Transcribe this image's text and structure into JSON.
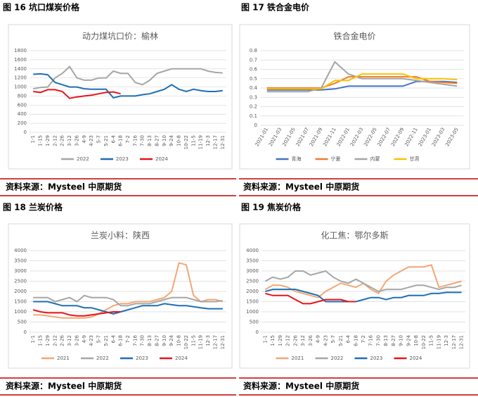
{
  "figures": [
    {
      "caption": "图 16 坑口煤炭价格",
      "source": "资料来源：Mysteel 中原期货"
    },
    {
      "caption": "图 17 铁合金电价",
      "source": "资料来源：Mysteel 中原期货"
    },
    {
      "caption": "图 18 兰炭价格",
      "source": "资料来源：Mysteel 中原期货"
    },
    {
      "caption": "图 19 焦炭价格",
      "source": "资料来源：Mysteel 中原期货"
    }
  ],
  "chart_data": [
    {
      "type": "line",
      "title": "动力煤坑口价：榆林",
      "categories": [
        "1-1",
        "1-15",
        "1-29",
        "2-12",
        "2-26",
        "3-12",
        "3-26",
        "4-9",
        "4-23",
        "5-7",
        "5-21",
        "6-4",
        "6-18",
        "7-2",
        "7-16",
        "7-30",
        "8-13",
        "8-27",
        "9-10",
        "9-24",
        "10-8",
        "10-22",
        "11-5",
        "11-19",
        "12-3",
        "12-17",
        "12-31"
      ],
      "series": [
        {
          "name": "2022",
          "color": "#a6a6a6",
          "values": [
            960,
            990,
            1000,
            1200,
            1300,
            1450,
            1200,
            1150,
            1150,
            1200,
            1200,
            1350,
            1300,
            1300,
            1100,
            1050,
            1150,
            1300,
            1350,
            1400,
            1400,
            1400,
            1400,
            1400,
            1350,
            1320,
            1310
          ]
        },
        {
          "name": "2023",
          "color": "#1f6fb4",
          "values": [
            1280,
            1290,
            1270,
            1100,
            1050,
            1000,
            1000,
            960,
            950,
            950,
            950,
            760,
            800,
            800,
            800,
            830,
            850,
            900,
            950,
            1050,
            950,
            900,
            950,
            920,
            900,
            900,
            920
          ]
        },
        {
          "name": "2024",
          "color": "#e8141b",
          "values": [
            900,
            880,
            940,
            940,
            900,
            750,
            780,
            800,
            820,
            850,
            880,
            890,
            850,
            null,
            null,
            null,
            null,
            null,
            null,
            null,
            null,
            null,
            null,
            null,
            null,
            null,
            null
          ]
        }
      ],
      "ylim": [
        0,
        1800
      ],
      "yticks": [
        0,
        200,
        400,
        600,
        800,
        1000,
        1200,
        1400,
        1600,
        1800
      ],
      "grid": true,
      "legend": "bottom"
    },
    {
      "type": "line",
      "title": "铁合金电价",
      "categories": [
        "2021-01",
        "2021-03",
        "2021-05",
        "2021-07",
        "2021-09",
        "2021-11",
        "2022-01",
        "2022-03",
        "2022-05",
        "2022-07",
        "2022-09",
        "2022-11",
        "2023-01",
        "2023-03",
        "2023-05"
      ],
      "series": [
        {
          "name": "青海",
          "color": "#4472c4",
          "values": [
            0.38,
            0.38,
            0.38,
            0.38,
            0.38,
            0.39,
            0.42,
            0.42,
            0.42,
            0.42,
            0.42,
            0.47,
            0.47,
            0.47,
            0.46
          ]
        },
        {
          "name": "宁夏",
          "color": "#ed7d31",
          "values": [
            0.4,
            0.4,
            0.4,
            0.4,
            0.4,
            0.45,
            0.52,
            0.52,
            0.52,
            0.52,
            0.52,
            0.52,
            0.47,
            0.46,
            0.45
          ]
        },
        {
          "name": "内蒙",
          "color": "#a5a5a5",
          "values": [
            0.36,
            0.36,
            0.36,
            0.36,
            0.4,
            0.68,
            0.55,
            0.5,
            0.5,
            0.5,
            0.5,
            0.48,
            0.46,
            0.44,
            0.42
          ]
        },
        {
          "name": "甘肃",
          "color": "#ffc000",
          "values": [
            0.39,
            0.39,
            0.39,
            0.39,
            0.39,
            0.48,
            0.48,
            0.55,
            0.55,
            0.55,
            0.55,
            0.5,
            0.5,
            0.5,
            0.49
          ]
        }
      ],
      "ylim": [
        0,
        0.8
      ],
      "yticks": [
        0,
        0.1,
        0.2,
        0.3,
        0.4,
        0.5,
        0.6,
        0.7,
        0.8
      ],
      "grid": true,
      "legend": "bottom"
    },
    {
      "type": "line",
      "title": "兰炭小料：陕西",
      "categories": [
        "1-1",
        "1-15",
        "1-29",
        "2-12",
        "2-26",
        "3-12",
        "3-26",
        "4-9",
        "4-23",
        "5-7",
        "5-21",
        "6-4",
        "6-18",
        "7-2",
        "7-16",
        "7-30",
        "8-13",
        "8-27",
        "9-10",
        "9-24",
        "10-8",
        "10-22",
        "11-5",
        "11-19",
        "12-3",
        "12-17",
        "12-31"
      ],
      "series": [
        {
          "name": "2021",
          "color": "#f4a673",
          "values": [
            850,
            850,
            800,
            750,
            700,
            700,
            700,
            700,
            750,
            900,
            1100,
            1300,
            1400,
            1400,
            1500,
            1500,
            1500,
            1600,
            1700,
            2000,
            3400,
            3300,
            1800,
            1500,
            1600,
            1600,
            1500
          ]
        },
        {
          "name": "2022",
          "color": "#a6a6a6",
          "values": [
            1700,
            1700,
            1700,
            1500,
            1600,
            1700,
            1500,
            1800,
            1700,
            1700,
            1700,
            1600,
            1300,
            1300,
            1400,
            1400,
            1400,
            1500,
            1600,
            1700,
            1700,
            1700,
            1600,
            1500,
            1500,
            1500,
            1550
          ]
        },
        {
          "name": "2023",
          "color": "#1f6fb4",
          "values": [
            1500,
            1500,
            1500,
            1400,
            1300,
            1300,
            1300,
            1200,
            1200,
            1100,
            1000,
            900,
            1000,
            1100,
            1200,
            1300,
            1300,
            1300,
            1400,
            1350,
            1300,
            1300,
            1250,
            1200,
            1150,
            1150,
            1150
          ]
        },
        {
          "name": "2024",
          "color": "#e8141b",
          "values": [
            1100,
            1000,
            950,
            950,
            950,
            850,
            800,
            800,
            850,
            900,
            950,
            1000,
            1000,
            null,
            null,
            null,
            null,
            null,
            null,
            null,
            null,
            null,
            null,
            null,
            null,
            null,
            null
          ]
        }
      ],
      "ylim": [
        0,
        4000
      ],
      "yticks": [
        0,
        500,
        1000,
        1500,
        2000,
        2500,
        3000,
        3500,
        4000
      ],
      "grid": true,
      "legend": "bottom"
    },
    {
      "type": "line",
      "title": "化工焦：鄂尔多斯",
      "categories": [
        "1-1",
        "1-15",
        "1-29",
        "2-12",
        "2-26",
        "3-12",
        "3-26",
        "4-9",
        "4-23",
        "5-7",
        "5-21",
        "6-4",
        "6-18",
        "7-2",
        "7-16",
        "7-30",
        "8-13",
        "8-27",
        "9-10",
        "9-24",
        "10-8",
        "10-22",
        "11-5",
        "11-19",
        "12-3",
        "12-17",
        "12-31"
      ],
      "series": [
        {
          "name": "2021",
          "color": "#f4a673",
          "values": [
            2100,
            2300,
            2300,
            2200,
            2000,
            1900,
            1800,
            1700,
            2000,
            2200,
            2400,
            2300,
            2200,
            2400,
            2100,
            1900,
            2500,
            2800,
            3000,
            3200,
            3200,
            3200,
            3300,
            2200,
            2300,
            2400,
            2500
          ]
        },
        {
          "name": "2022",
          "color": "#a6a6a6",
          "values": [
            2500,
            2700,
            2600,
            2700,
            3000,
            3000,
            2800,
            2900,
            3000,
            2700,
            2500,
            2400,
            2600,
            2400,
            2200,
            2000,
            2100,
            2100,
            2100,
            2200,
            2300,
            2300,
            2200,
            2100,
            2200,
            2200,
            2300
          ]
        },
        {
          "name": "2023",
          "color": "#1f6fb4",
          "values": [
            2000,
            2100,
            2100,
            2100,
            2100,
            2000,
            1900,
            1800,
            1500,
            1500,
            1500,
            1500,
            1500,
            1600,
            1700,
            1700,
            1600,
            1700,
            1700,
            1800,
            1800,
            1800,
            1900,
            1900,
            1950,
            1950,
            1950
          ]
        },
        {
          "name": "2024",
          "color": "#e8141b",
          "values": [
            1900,
            1800,
            1800,
            1800,
            1600,
            1400,
            1400,
            1500,
            1600,
            1600,
            1600,
            1500,
            1500,
            null,
            null,
            null,
            null,
            null,
            null,
            null,
            null,
            null,
            null,
            null,
            null,
            null,
            null
          ]
        }
      ],
      "ylim": [
        0,
        4000
      ],
      "yticks": [
        0,
        500,
        1000,
        1500,
        2000,
        2500,
        3000,
        3500,
        4000
      ],
      "grid": true,
      "legend": "bottom"
    }
  ]
}
